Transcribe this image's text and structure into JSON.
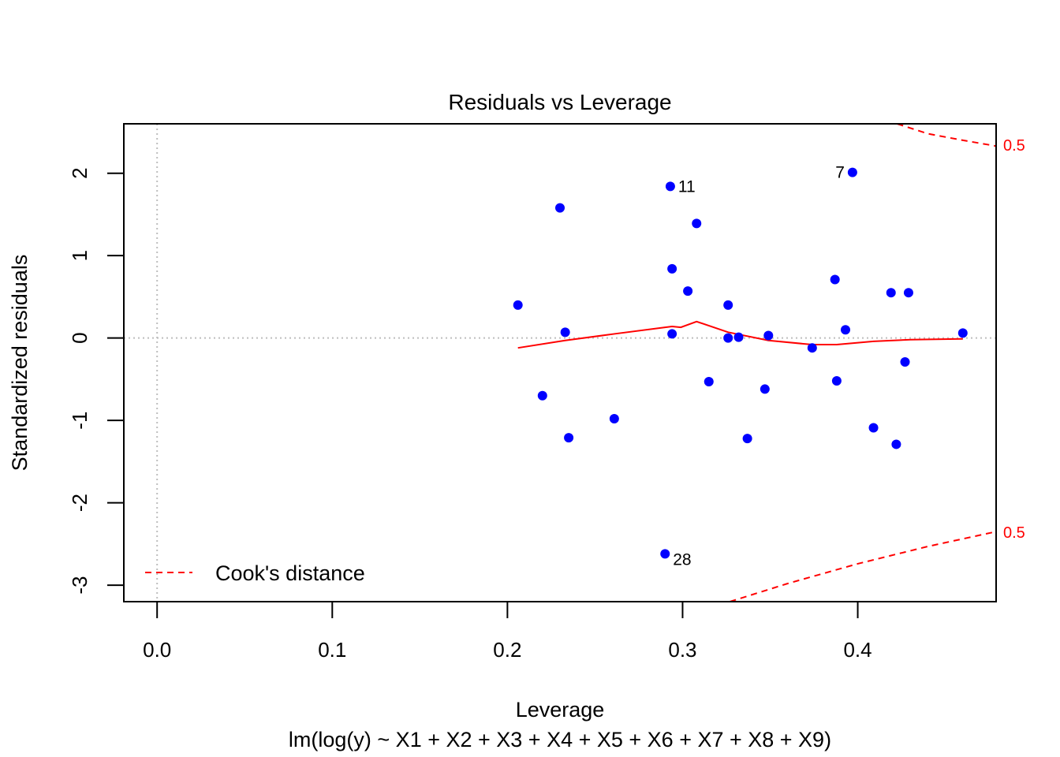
{
  "chart_data": {
    "type": "scatter",
    "title": "Residuals vs Leverage",
    "xlabel": "Leverage",
    "ylabel": "Standardized residuals",
    "subtitle": "lm(log(y) ~ X1 + X2 + X3 + X4 + X5 + X6 + X7 + X8 + X9)",
    "xlim": [
      -0.019,
      0.479
    ],
    "ylim": [
      -3.2,
      2.6
    ],
    "xticks": [
      "0.0",
      "0.1",
      "0.2",
      "0.3",
      "0.4"
    ],
    "xtick_values": [
      0,
      0.1,
      0.2,
      0.3,
      0.4
    ],
    "yticks": [
      "-3",
      "-2",
      "-1",
      "0",
      "1",
      "2"
    ],
    "ytick_values": [
      -3,
      -2,
      -1,
      0,
      1,
      2
    ],
    "point_color": "#0000ff",
    "smooth_color": "#ff0000",
    "points": [
      {
        "x": 0.206,
        "y": 0.4
      },
      {
        "x": 0.22,
        "y": -0.7
      },
      {
        "x": 0.23,
        "y": 1.58
      },
      {
        "x": 0.233,
        "y": 0.07
      },
      {
        "x": 0.235,
        "y": -1.21
      },
      {
        "x": 0.261,
        "y": -0.98
      },
      {
        "x": 0.29,
        "y": -2.62,
        "label": "28"
      },
      {
        "x": 0.293,
        "y": 1.84,
        "label": "11"
      },
      {
        "x": 0.294,
        "y": 0.84
      },
      {
        "x": 0.294,
        "y": 0.05
      },
      {
        "x": 0.303,
        "y": 0.57
      },
      {
        "x": 0.308,
        "y": 1.39
      },
      {
        "x": 0.315,
        "y": -0.53
      },
      {
        "x": 0.326,
        "y": 0.4
      },
      {
        "x": 0.326,
        "y": 0.0
      },
      {
        "x": 0.332,
        "y": 0.01
      },
      {
        "x": 0.337,
        "y": -1.22
      },
      {
        "x": 0.347,
        "y": -0.62
      },
      {
        "x": 0.349,
        "y": 0.03
      },
      {
        "x": 0.374,
        "y": -0.12
      },
      {
        "x": 0.387,
        "y": 0.71
      },
      {
        "x": 0.388,
        "y": -0.52
      },
      {
        "x": 0.393,
        "y": 0.1
      },
      {
        "x": 0.397,
        "y": 2.01,
        "label": "7"
      },
      {
        "x": 0.409,
        "y": -1.09
      },
      {
        "x": 0.419,
        "y": 0.55
      },
      {
        "x": 0.422,
        "y": -1.29
      },
      {
        "x": 0.427,
        "y": -0.29
      },
      {
        "x": 0.429,
        "y": 0.55
      },
      {
        "x": 0.46,
        "y": 0.06
      }
    ],
    "smooth_line": [
      {
        "x": 0.206,
        "y": -0.12
      },
      {
        "x": 0.233,
        "y": -0.03
      },
      {
        "x": 0.261,
        "y": 0.05
      },
      {
        "x": 0.29,
        "y": 0.13
      },
      {
        "x": 0.294,
        "y": 0.14
      },
      {
        "x": 0.299,
        "y": 0.13
      },
      {
        "x": 0.308,
        "y": 0.2
      },
      {
        "x": 0.326,
        "y": 0.07
      },
      {
        "x": 0.349,
        "y": -0.03
      },
      {
        "x": 0.374,
        "y": -0.08
      },
      {
        "x": 0.388,
        "y": -0.08
      },
      {
        "x": 0.409,
        "y": -0.04
      },
      {
        "x": 0.43,
        "y": -0.02
      },
      {
        "x": 0.46,
        "y": -0.01
      }
    ],
    "cooks_distance": {
      "level_label": "0.5",
      "upper": [
        {
          "x": 0.4225,
          "y": 2.6
        },
        {
          "x": 0.44,
          "y": 2.48
        },
        {
          "x": 0.46,
          "y": 2.4
        },
        {
          "x": 0.479,
          "y": 2.33
        }
      ],
      "lower": [
        {
          "x": 0.327,
          "y": -3.2
        },
        {
          "x": 0.36,
          "y": -2.98
        },
        {
          "x": 0.4,
          "y": -2.74
        },
        {
          "x": 0.44,
          "y": -2.53
        },
        {
          "x": 0.479,
          "y": -2.35
        }
      ]
    },
    "legend": {
      "label": "Cook's distance",
      "placement": "bottom-left"
    },
    "reference_lines": {
      "x": 0,
      "y": 0
    }
  }
}
